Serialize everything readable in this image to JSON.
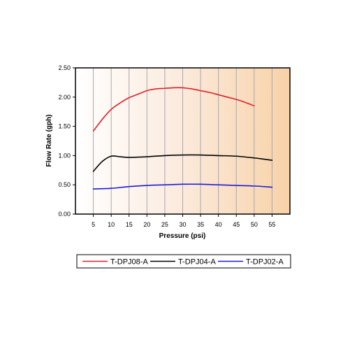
{
  "chart_data": {
    "type": "line",
    "title": "",
    "xlabel": "Pressure (psi)",
    "ylabel": "Flow Rate (gph)",
    "xlim": [
      0,
      60
    ],
    "ylim": [
      0,
      2.5
    ],
    "xticks": [
      "5",
      "10",
      "15",
      "20",
      "25",
      "30",
      "35",
      "40",
      "45",
      "50",
      "55"
    ],
    "yticks": [
      "0.00",
      "0.50",
      "1.00",
      "1.50",
      "2.00",
      "2.50"
    ],
    "grid": "vertical",
    "background": "gradient white-to-orange",
    "legend_position": "bottom",
    "series": [
      {
        "name": "T-DPJ08-A",
        "color": "#e0202a",
        "x": [
          5,
          7.5,
          10,
          12.5,
          15,
          17.5,
          20,
          22.5,
          25,
          27.5,
          30,
          32.5,
          35,
          37.5,
          40,
          42.5,
          45,
          47.5,
          50
        ],
        "values": [
          1.42,
          1.62,
          1.79,
          1.9,
          1.99,
          2.05,
          2.11,
          2.14,
          2.15,
          2.16,
          2.16,
          2.14,
          2.11,
          2.08,
          2.04,
          2.0,
          1.96,
          1.91,
          1.85
        ]
      },
      {
        "name": "T-DPJ04-A",
        "color": "#000000",
        "x": [
          5,
          7.5,
          10,
          12.5,
          15,
          20,
          25,
          30,
          35,
          40,
          45,
          50,
          55
        ],
        "values": [
          0.73,
          0.9,
          0.99,
          0.98,
          0.97,
          0.98,
          1.0,
          1.01,
          1.01,
          1.0,
          0.99,
          0.96,
          0.92
        ]
      },
      {
        "name": "T-DPJ02-A",
        "color": "#1b1bd6",
        "x": [
          5,
          10,
          15,
          20,
          25,
          30,
          35,
          40,
          45,
          50,
          55
        ],
        "values": [
          0.43,
          0.44,
          0.47,
          0.49,
          0.5,
          0.51,
          0.51,
          0.5,
          0.49,
          0.48,
          0.46
        ]
      }
    ]
  }
}
